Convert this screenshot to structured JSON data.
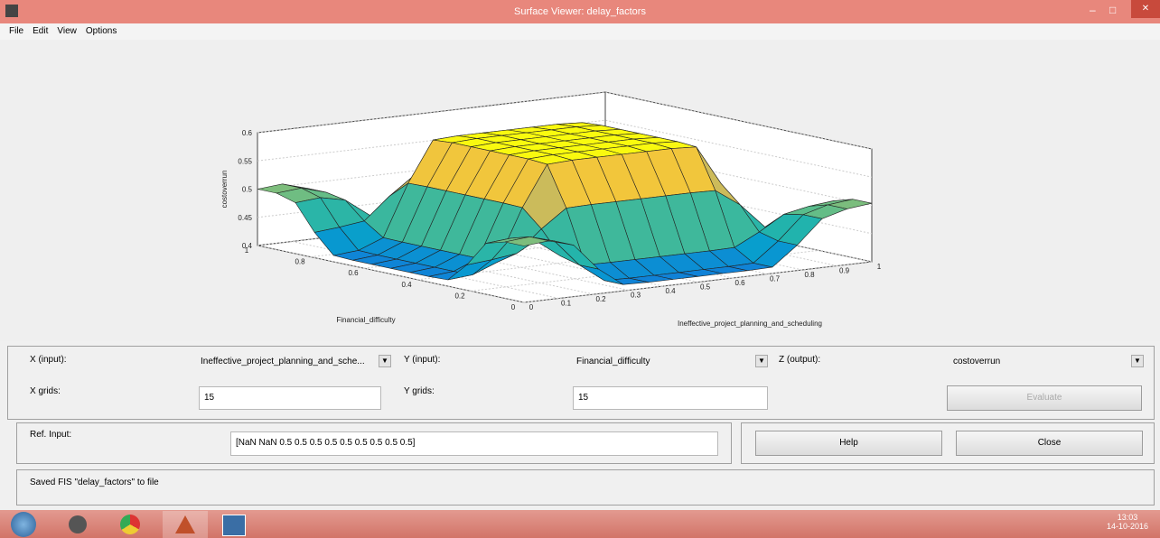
{
  "window": {
    "title": "Surface Viewer: delay_factors",
    "menu": [
      "File",
      "Edit",
      "View",
      "Options"
    ]
  },
  "plot": {
    "z_label": "costoverrun",
    "z_ticks": [
      0.4,
      0.45,
      0.5,
      0.55,
      0.6
    ],
    "y_label": "Financial_difficulty",
    "y_ticks": [
      0,
      0.2,
      0.4,
      0.6,
      0.8,
      1
    ],
    "x_label": "Ineffective_project_planning_and_scheduling",
    "x_ticks": [
      0,
      0.1,
      0.2,
      0.3,
      0.4,
      0.5,
      0.6,
      0.7,
      0.8,
      0.9,
      1
    ]
  },
  "controls": {
    "x_input_label": "X (input):",
    "x_input": "Ineffective_project_planning_and_sche...",
    "y_input_label": "Y (input):",
    "y_input": "Financial_difficulty",
    "z_output_label": "Z (output):",
    "z_output": "costoverrun",
    "x_grids_label": "X grids:",
    "x_grids": "15",
    "y_grids_label": "Y grids:",
    "y_grids": "15",
    "evaluate": "Evaluate",
    "ref_input_label": "Ref. Input:",
    "ref_input": "[NaN NaN 0.5 0.5 0.5 0.5 0.5 0.5 0.5 0.5 0.5]",
    "help": "Help",
    "close": "Close"
  },
  "status": "Saved FIS \"delay_factors\" to file",
  "taskbar": {
    "time": "13:03",
    "date": "14-10-2016"
  }
}
